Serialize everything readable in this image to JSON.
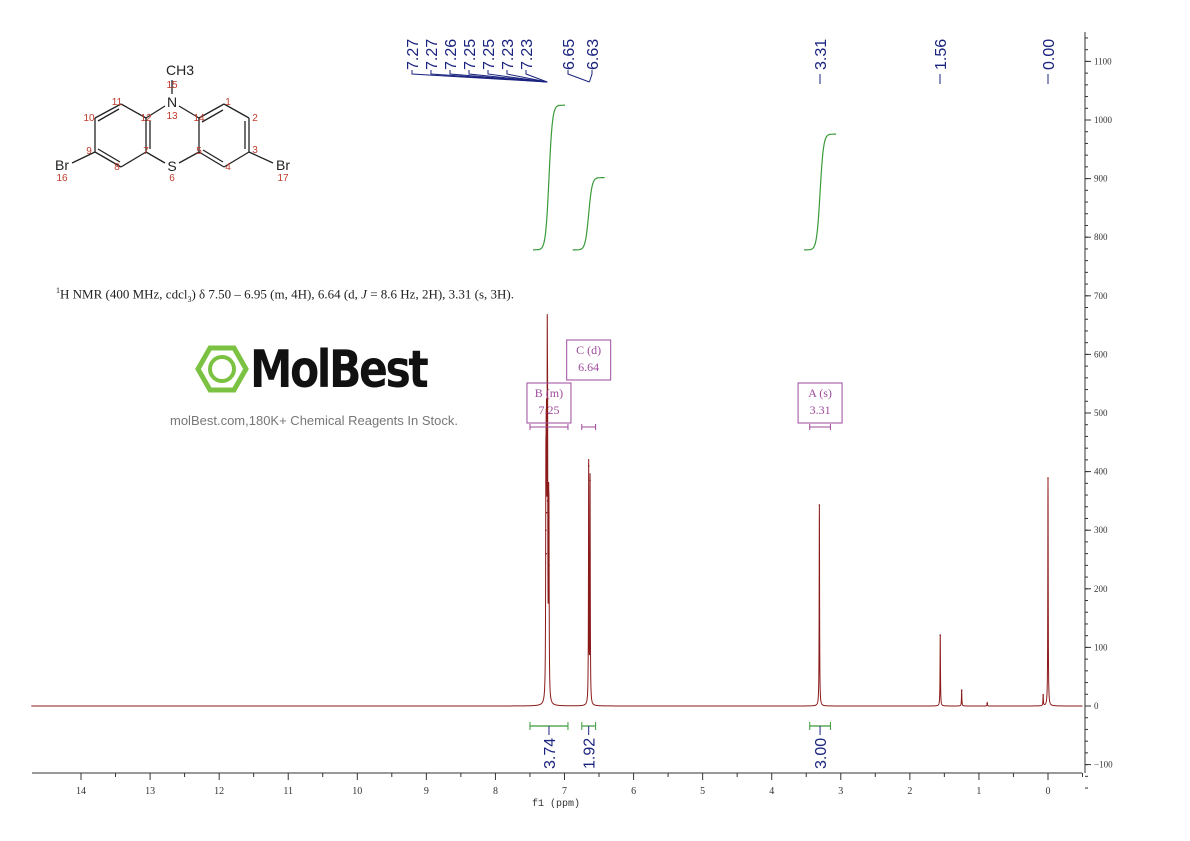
{
  "structure": {
    "atoms": {
      "ch3": "CH3",
      "n": "N",
      "s": "S",
      "br_left": "Br",
      "br_right": "Br"
    },
    "numbers": {
      "n1": "1",
      "n2": "2",
      "n3": "3",
      "n4": "4",
      "n5": "5",
      "n6": "6",
      "n7": "7",
      "n8": "8",
      "n9": "9",
      "n10": "10",
      "n11": "11",
      "n12": "12",
      "n13": "13",
      "n14": "14",
      "n15": "15",
      "n16": "16",
      "n17": "17"
    }
  },
  "nmr_description": {
    "sup": "1",
    "text_a": "H NMR (400 MHz, cdcl",
    "sub": "3",
    "text_b": ") δ 7.50 – 6.95 (m, 4H), 6.64 (d, ",
    "j": "J",
    "text_c": " = 8.6 Hz, 2H), 3.31 (s, 3H)."
  },
  "watermark": {
    "brand": "MolBest",
    "tagline": "molBest.com,180K+ Chemical Reagents In Stock.",
    "color": "#7cc242"
  },
  "chart_data": {
    "type": "line",
    "title": "",
    "xlabel": "f1 (ppm)",
    "ylabel": "",
    "xlim": [
      14.7,
      -0.5
    ],
    "ylim": [
      -150,
      1150
    ],
    "x_reversed": true,
    "x_ticks": [
      "14",
      "13",
      "12",
      "11",
      "10",
      "9",
      "8",
      "7",
      "6",
      "5",
      "4",
      "3",
      "2",
      "1",
      "0"
    ],
    "y_ticks": [
      "-100",
      "0",
      "100",
      "200",
      "300",
      "400",
      "500",
      "600",
      "700",
      "800",
      "900",
      "1000",
      "1100"
    ],
    "y_axis_side": "right",
    "grid": false,
    "spectrum_color": "#8b1a1a",
    "integral_color": "#3a9a3a",
    "label_color": "#1a237e",
    "multiplet_color": "#9c4a9c",
    "peaks": [
      {
        "ppm": 7.27,
        "height": 300
      },
      {
        "ppm": 7.265,
        "height": 260
      },
      {
        "ppm": 7.26,
        "height": 330
      },
      {
        "ppm": 7.25,
        "height": 483
      },
      {
        "ppm": 7.245,
        "height": 350
      },
      {
        "ppm": 7.23,
        "height": 260
      },
      {
        "ppm": 7.225,
        "height": 240
      },
      {
        "ppm": 6.65,
        "height": 410
      },
      {
        "ppm": 6.63,
        "height": 385
      },
      {
        "ppm": 3.31,
        "height": 343
      },
      {
        "ppm": 1.56,
        "height": 121
      },
      {
        "ppm": 1.25,
        "height": 27
      },
      {
        "ppm": 0.88,
        "height": 5
      },
      {
        "ppm": 0.07,
        "height": 19
      },
      {
        "ppm": 0.0,
        "height": 389
      }
    ],
    "peak_labels": [
      "7.27",
      "7.27",
      "7.26",
      "7.25",
      "7.25",
      "7.23",
      "7.23",
      "6.65",
      "6.63",
      "3.31",
      "1.56",
      "0.00"
    ],
    "peak_label_groups": [
      {
        "labels": [
          "7.27",
          "7.27",
          "7.26",
          "7.25",
          "7.25",
          "7.23",
          "7.23"
        ],
        "ppm": 7.25
      },
      {
        "labels": [
          "6.65",
          "6.63"
        ],
        "ppm": 6.64
      },
      {
        "labels": [
          "3.31"
        ],
        "ppm": 3.31
      },
      {
        "labels": [
          "1.56"
        ],
        "ppm": 1.56
      },
      {
        "labels": [
          "0.00"
        ],
        "ppm": 0.0
      }
    ],
    "integrals": [
      {
        "from": 7.5,
        "to": 6.95,
        "value": "3.74",
        "curve_rise": 250
      },
      {
        "from": 6.75,
        "to": 6.55,
        "value": "1.92",
        "curve_rise": 125
      },
      {
        "from": 3.45,
        "to": 3.15,
        "value": "3.00",
        "curve_rise": 200
      }
    ],
    "multiplets": [
      {
        "name": "B (m)",
        "shift": "7.25",
        "from": 7.5,
        "to": 6.95
      },
      {
        "name": "C (d)",
        "shift": "6.64",
        "from": 6.75,
        "to": 6.55
      },
      {
        "name": "A (s)",
        "shift": "3.31",
        "from": 3.45,
        "to": 3.15
      }
    ]
  }
}
